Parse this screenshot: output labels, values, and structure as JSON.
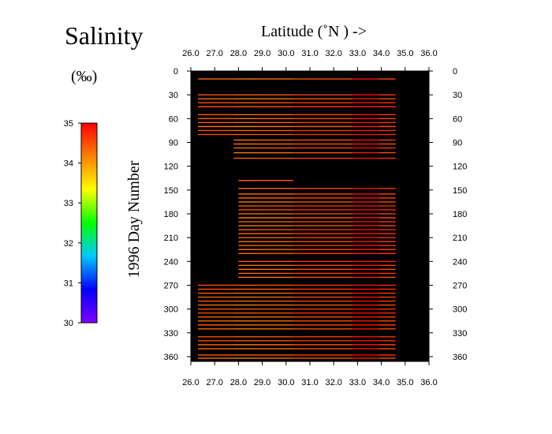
{
  "chart_data": {
    "type": "heatmap",
    "title": "Salinity",
    "unit": "(‰)",
    "xlabel": "Latitude  (˚N )  ->",
    "ylabel": "1996   Day  Number",
    "xlim": [
      26.0,
      36.0
    ],
    "ylim": [
      0,
      366
    ],
    "x_ticks": [
      "26.0",
      "27.0",
      "28.0",
      "29.0",
      "30.0",
      "31.0",
      "32.0",
      "33.0",
      "34.0",
      "35.0",
      "36.0"
    ],
    "y_ticks": [
      "0",
      "30",
      "60",
      "90",
      "120",
      "150",
      "180",
      "210",
      "240",
      "270",
      "300",
      "330",
      "360"
    ],
    "y_reversed": true,
    "grid": false,
    "background": "#000000",
    "colorbar": {
      "min": 30,
      "max": 35,
      "ticks": [
        "30",
        "31",
        "32",
        "33",
        "34",
        "35"
      ],
      "colors": [
        "#7f00ff",
        "#0000ff",
        "#00c8ff",
        "#00ff00",
        "#ffff00",
        "#ff8000",
        "#ff0000"
      ]
    },
    "cruise_days": [
      10,
      30,
      35,
      40,
      45,
      55,
      60,
      65,
      70,
      75,
      80,
      87,
      92,
      97,
      103,
      110,
      138,
      148,
      155,
      160,
      165,
      170,
      175,
      180,
      185,
      190,
      195,
      200,
      205,
      210,
      215,
      220,
      225,
      230,
      240,
      245,
      250,
      255,
      260,
      270,
      275,
      280,
      285,
      290,
      295,
      300,
      305,
      310,
      315,
      320,
      325,
      335,
      340,
      345,
      350,
      358,
      362
    ],
    "cruise_lat_start": [
      26.3,
      26.3,
      26.3,
      26.3,
      26.3,
      26.3,
      26.3,
      26.3,
      26.3,
      26.3,
      26.3,
      27.8,
      27.8,
      27.8,
      27.8,
      27.8,
      28.0,
      28.0,
      28.0,
      28.0,
      28.0,
      28.0,
      28.0,
      28.0,
      28.0,
      28.0,
      28.0,
      28.0,
      28.0,
      28.0,
      28.0,
      28.0,
      28.0,
      28.0,
      28.0,
      28.0,
      28.0,
      28.0,
      28.0,
      26.3,
      26.3,
      26.3,
      26.3,
      26.3,
      26.3,
      26.3,
      26.3,
      26.3,
      26.3,
      26.3,
      26.3,
      26.3,
      26.3,
      26.3,
      26.3,
      26.3,
      26.3
    ],
    "cruise_lat_end": [
      34.6,
      34.6,
      34.6,
      34.6,
      34.6,
      34.6,
      34.6,
      34.6,
      34.6,
      34.6,
      34.6,
      34.6,
      34.6,
      34.6,
      34.6,
      34.6,
      30.3,
      34.6,
      34.6,
      34.6,
      34.6,
      34.6,
      34.6,
      34.6,
      34.6,
      34.6,
      34.6,
      34.6,
      34.6,
      34.6,
      34.6,
      34.6,
      34.6,
      34.6,
      34.6,
      34.6,
      34.6,
      34.6,
      34.6,
      34.6,
      34.6,
      34.6,
      34.6,
      34.6,
      34.6,
      34.6,
      34.6,
      34.6,
      34.6,
      34.6,
      34.6,
      34.6,
      34.6,
      34.6,
      34.6,
      34.6,
      34.6
    ],
    "segment_lat": [
      26.3,
      27.8,
      28.8,
      30.3,
      32.8,
      33.9,
      34.6
    ],
    "segment_salinity": [
      [
        34.35,
        34.25,
        34.3,
        34.5,
        34.9,
        34.55
      ],
      [
        34.45,
        34.35,
        34.4,
        34.6,
        34.95,
        34.65
      ],
      [
        34.3,
        34.2,
        34.25,
        34.45,
        34.85,
        34.5
      ],
      [
        34.5,
        34.4,
        34.45,
        34.65,
        34.9,
        34.7
      ],
      [
        34.55,
        34.45,
        34.5,
        34.7,
        34.95,
        34.75
      ],
      [
        34.4,
        34.3,
        34.35,
        34.55,
        34.9,
        34.6
      ]
    ]
  }
}
